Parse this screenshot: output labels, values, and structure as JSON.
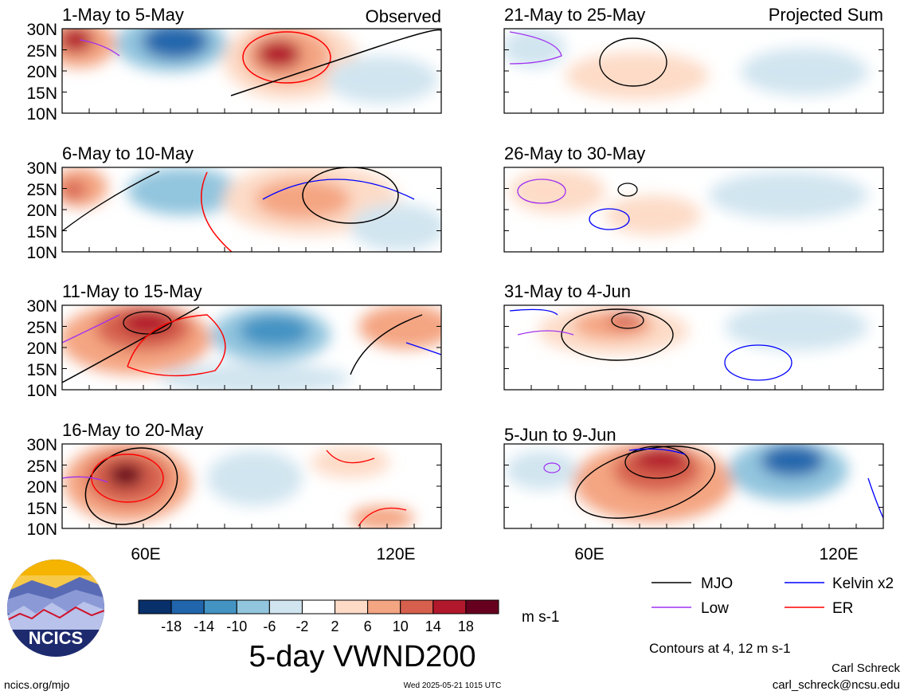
{
  "panels": [
    {
      "date_range": "1-May to 5-May",
      "corner_label": "Observed"
    },
    {
      "date_range": "6-May to 10-May",
      "corner_label": ""
    },
    {
      "date_range": "11-May to 15-May",
      "corner_label": ""
    },
    {
      "date_range": "16-May to 20-May",
      "corner_label": ""
    },
    {
      "date_range": "21-May to 25-May",
      "corner_label": "Projected Sum"
    },
    {
      "date_range": "26-May to 30-May",
      "corner_label": ""
    },
    {
      "date_range": "31-May to 4-Jun",
      "corner_label": ""
    },
    {
      "date_range": "5-Jun to 9-Jun",
      "corner_label": ""
    }
  ],
  "lat_labels": [
    "30N",
    "25N",
    "20N",
    "15N",
    "10N"
  ],
  "lon_labels": [
    "60E",
    "120E"
  ],
  "colorbar": {
    "ticks": [
      "-18",
      "-14",
      "-10",
      "-6",
      "-2",
      "2",
      "6",
      "10",
      "14",
      "18"
    ],
    "colors": [
      "#08306b",
      "#2166ac",
      "#4393c3",
      "#92c5de",
      "#d1e5f0",
      "#ffffff",
      "#fddbc7",
      "#f4a582",
      "#d6604d",
      "#b2182b",
      "#67001f"
    ],
    "units": "m s-1"
  },
  "legend": [
    {
      "label": "MJO",
      "color": "#000000"
    },
    {
      "label": "Kelvin x2",
      "color": "#0000ff"
    },
    {
      "label": "Low",
      "color": "#a030f0"
    },
    {
      "label": "ER",
      "color": "#ff0000"
    }
  ],
  "main_title": "5-day VWND200",
  "contours_note": "Contours at 4, 12 m s-1",
  "logo_text": "NCICS",
  "site": "ncics.org/mjo",
  "timestamp": "Wed 2025-05-21 1015 UTC",
  "author": "Carl Schreck",
  "email": "carl_schreck@ncsu.edu"
}
